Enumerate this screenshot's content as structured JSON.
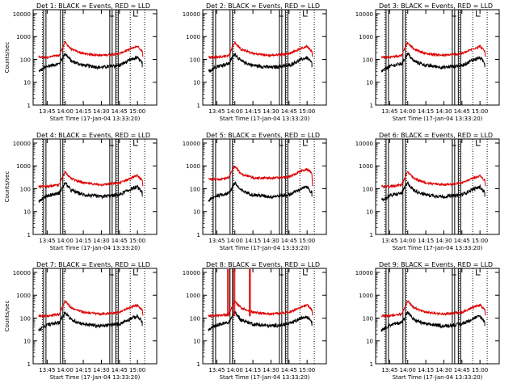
{
  "figure": {
    "panels": [
      {
        "title": "Det  1: BLACK = Events, RED = LLD"
      },
      {
        "title": "Det  2: BLACK = Events, RED = LLD"
      },
      {
        "title": "Det  3: BLACK = Events, RED = LLD"
      },
      {
        "title": "Det  4: BLACK = Events, RED = LLD"
      },
      {
        "title": "Det  5: BLACK = Events, RED = LLD"
      },
      {
        "title": "Det  6: BLACK = Events, RED = LLD"
      },
      {
        "title": "Det  7: BLACK = Events, RED = LLD"
      },
      {
        "title": "Det  8: BLACK = Events, RED = LLD"
      },
      {
        "title": "Det  9: BLACK = Events, RED = LLD"
      }
    ]
  },
  "chart_data": {
    "type": "line",
    "yscale": "log",
    "ylim": [
      1,
      15000
    ],
    "y_ticks": [
      1,
      10,
      100,
      1000,
      10000
    ],
    "y_tick_labels": [
      "1",
      "10",
      "100",
      "1000",
      "10000"
    ],
    "x_ticks": [
      "13:45",
      "14:00",
      "14:15",
      "14:30",
      "14:45",
      "15:00"
    ],
    "xlabel": "Start Time (17-Jan-04 13:33:20)",
    "ylabel": "Counts/sec",
    "series_colors": {
      "events": "#000000",
      "lld": "#dd0000"
    },
    "profile_times": [
      "13:38",
      "13:45",
      "13:55",
      "13:59",
      "14:00",
      "14:05",
      "14:15",
      "14:30",
      "14:45",
      "14:55",
      "15:00",
      "15:05"
    ],
    "events_profile": [
      30,
      50,
      65,
      150,
      180,
      85,
      55,
      45,
      55,
      100,
      120,
      60
    ],
    "lld_profile": [
      125,
      125,
      150,
      450,
      550,
      280,
      180,
      150,
      180,
      300,
      380,
      200
    ],
    "lld_profile_panel5": [
      260,
      260,
      300,
      850,
      1000,
      450,
      300,
      290,
      330,
      600,
      700,
      450
    ]
  }
}
